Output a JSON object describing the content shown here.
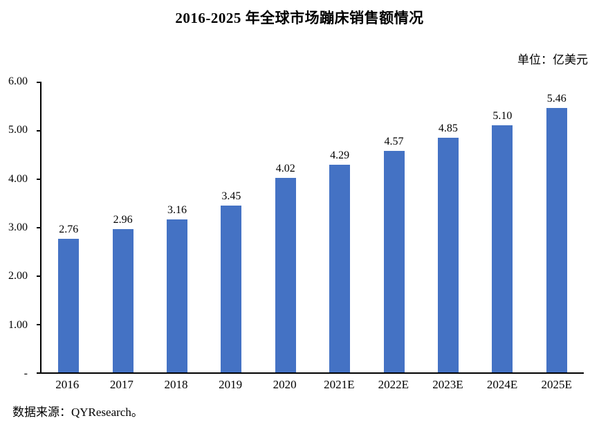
{
  "title": "2016-2025 年全球市场蹦床销售额情况",
  "unit_label": "单位：亿美元",
  "source": "数据来源：QYResearch。",
  "colors": {
    "bar": "#4472C4",
    "axis": "#000000",
    "background": "#FFFFFF"
  },
  "chart_data": {
    "type": "bar",
    "title": "2016-2025 年全球市场蹦床销售额情况",
    "categories": [
      "2016",
      "2017",
      "2018",
      "2019",
      "2020",
      "2021E",
      "2022E",
      "2023E",
      "2024E",
      "2025E"
    ],
    "values": [
      2.76,
      2.96,
      3.16,
      3.45,
      4.02,
      4.29,
      4.57,
      4.85,
      5.1,
      5.46
    ],
    "value_labels": [
      "2.76",
      "2.96",
      "3.16",
      "3.45",
      "4.02",
      "4.29",
      "4.57",
      "4.85",
      "5.10",
      "5.46"
    ],
    "unit": "亿美元",
    "xlabel": "",
    "ylabel": "",
    "ylim": [
      0,
      6
    ],
    "y_ticks": [
      {
        "label": "6.00",
        "value": 6
      },
      {
        "label": "5.00",
        "value": 5
      },
      {
        "label": "4.00",
        "value": 4
      },
      {
        "label": "3.00",
        "value": 3
      },
      {
        "label": "2.00",
        "value": 2
      },
      {
        "label": "1.00",
        "value": 1
      },
      {
        "label": "-",
        "value": 0
      }
    ],
    "grid": false,
    "legend": false,
    "bar_color": "#4472C4"
  }
}
